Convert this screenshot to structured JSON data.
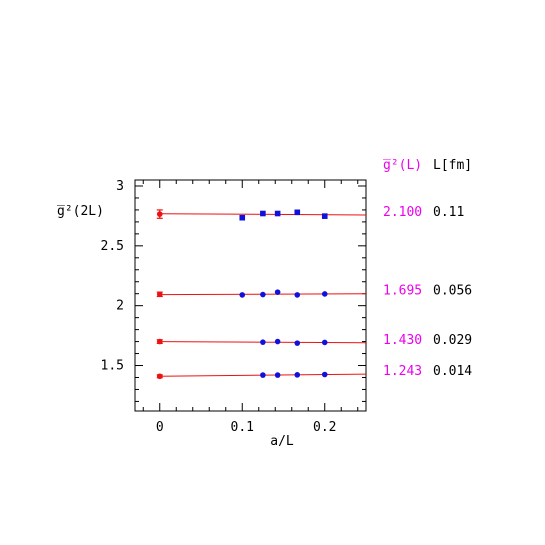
{
  "chart_data": {
    "type": "scatter",
    "title": "",
    "xlabel": "a/L",
    "ylabel": "g̅²(2L)",
    "xlim": [
      -0.03,
      0.25
    ],
    "ylim": [
      1.12,
      3.05
    ],
    "xticks": [
      0,
      0.1,
      0.2
    ],
    "xtick_labels": [
      "0",
      "0.1",
      "0.2"
    ],
    "yticks": [
      1.5,
      2,
      2.5,
      3
    ],
    "ytick_labels": [
      "1.5",
      "2",
      "2.5",
      "3"
    ],
    "grid": false,
    "colors": {
      "data": "#1111dd",
      "extrapolation": "#ee1111",
      "fit": "#ee1111",
      "left_label": "#ee00ee",
      "right_label": "#000000"
    },
    "columns": {
      "left_header": "g̅²(L)",
      "right_header": "L[fm]"
    },
    "series": [
      {
        "label_left": "2.100",
        "label_right": "0.11",
        "x": [
          0.1,
          0.125,
          0.1429,
          0.1667,
          0.2
        ],
        "y": [
          2.735,
          2.77,
          2.77,
          2.78,
          2.748
        ],
        "marker": "square",
        "continuum": {
          "x": 0,
          "y": 2.765,
          "err": 0.035
        },
        "fit": {
          "x": [
            0,
            0.25
          ],
          "y": [
            2.768,
            2.758
          ]
        }
      },
      {
        "label_left": "1.695",
        "label_right": "0.056",
        "x": [
          0.1,
          0.125,
          0.1429,
          0.1667,
          0.2
        ],
        "y": [
          2.09,
          2.093,
          2.113,
          2.09,
          2.098
        ],
        "marker": "circle",
        "continuum": {
          "x": 0,
          "y": 2.095,
          "err": 0.018
        },
        "fit": {
          "x": [
            0,
            0.25
          ],
          "y": [
            2.092,
            2.1
          ]
        }
      },
      {
        "label_left": "1.430",
        "label_right": "0.029",
        "x": [
          0.125,
          0.1429,
          0.1667,
          0.2
        ],
        "y": [
          1.695,
          1.7,
          1.687,
          1.693
        ],
        "marker": "circle",
        "continuum": {
          "x": 0,
          "y": 1.7,
          "err": 0.015
        },
        "fit": {
          "x": [
            0,
            0.25
          ],
          "y": [
            1.7,
            1.69
          ]
        }
      },
      {
        "label_left": "1.243",
        "label_right": "0.014",
        "x": [
          0.125,
          0.1429,
          0.1667,
          0.2
        ],
        "y": [
          1.42,
          1.42,
          1.422,
          1.425
        ],
        "marker": "circle",
        "continuum": {
          "x": 0,
          "y": 1.41,
          "err": 0.012
        },
        "fit": {
          "x": [
            0,
            0.25
          ],
          "y": [
            1.41,
            1.428
          ]
        }
      }
    ]
  }
}
